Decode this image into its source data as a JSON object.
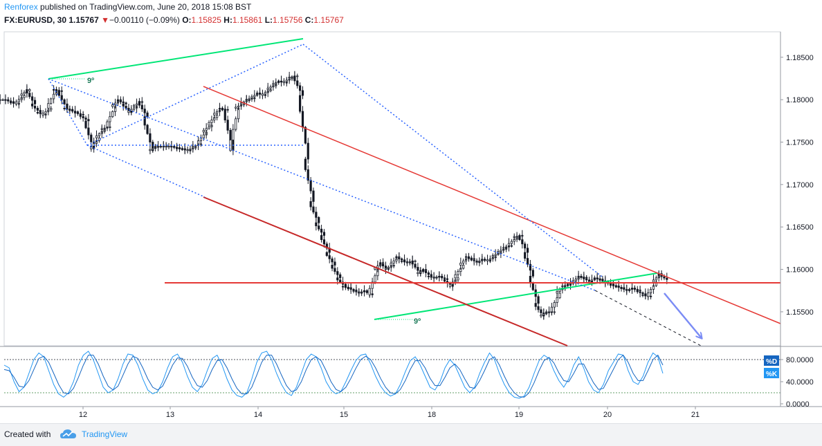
{
  "header": {
    "brand": "Renforex",
    "published": "published on TradingView.com, June 20, 2018 15:08 BST",
    "symbol": "FX:EURUSD, 30",
    "last": "1.15767",
    "change": "−0.00110 (−0.09%)",
    "o_label": "O:",
    "o": "1.15825",
    "h_label": "H:",
    "h": "1.15861",
    "l_label": "L:",
    "l": "1.15756",
    "c_label": "C:",
    "c": "1.15767"
  },
  "footer": {
    "created": "Created with",
    "brand": "TradingView"
  },
  "colors": {
    "up": "#131722",
    "down": "#131722",
    "trend_red": "#e53935",
    "trend_green": "#00e676",
    "dotted_blue": "#2962ff",
    "stoch_k": "#2196f3",
    "stoch_d": "#1565c0",
    "axis_text": "#131722"
  },
  "chart_data": [
    {
      "type": "line",
      "subtype": "candlestick",
      "x_ticks": [
        "12",
        "13",
        "14",
        "15",
        "18",
        "19",
        "20",
        "21"
      ],
      "y_ticks": [
        "1.18500",
        "1.18000",
        "1.17500",
        "1.17000",
        "1.16500",
        "1.16000",
        "1.15500"
      ],
      "ylim": [
        1.151,
        1.188
      ],
      "x_range": [
        0,
        71.1
      ],
      "series": [
        {
          "values": [
            [
              0.0,
              1.18
            ],
            [
              0.5,
              1.1797
            ],
            [
              1.0,
              1.1795
            ],
            [
              1.5,
              1.1805
            ],
            [
              2.0,
              1.1812
            ],
            [
              2.5,
              1.1795
            ],
            [
              3.0,
              1.1785
            ],
            [
              3.5,
              1.1782
            ],
            [
              4.0,
              1.179
            ],
            [
              4.5,
              1.1812
            ],
            [
              5.0,
              1.181
            ],
            [
              5.5,
              1.179
            ],
            [
              6.0,
              1.1788
            ],
            [
              6.5,
              1.1785
            ],
            [
              7.0,
              1.1782
            ],
            [
              7.5,
              1.1775
            ],
            [
              8.0,
              1.1742
            ],
            [
              8.5,
              1.1755
            ],
            [
              9.0,
              1.1765
            ],
            [
              9.5,
              1.1768
            ],
            [
              10.0,
              1.1792
            ],
            [
              10.5,
              1.18
            ],
            [
              11.0,
              1.1795
            ],
            [
              11.5,
              1.1785
            ],
            [
              12.0,
              1.1792
            ],
            [
              12.5,
              1.1798
            ],
            [
              13.0,
              1.178
            ],
            [
              13.5,
              1.174
            ],
            [
              14.0,
              1.1745
            ],
            [
              14.5,
              1.1745
            ],
            [
              15.0,
              1.1745
            ],
            [
              15.5,
              1.1745
            ],
            [
              16.0,
              1.1743
            ],
            [
              16.5,
              1.1742
            ],
            [
              17.0,
              1.174
            ],
            [
              17.5,
              1.1744
            ],
            [
              18.0,
              1.1748
            ],
            [
              18.5,
              1.1762
            ],
            [
              19.0,
              1.177
            ],
            [
              19.5,
              1.1782
            ],
            [
              20.0,
              1.179
            ],
            [
              20.5,
              1.1788
            ],
            [
              21.0,
              1.174
            ],
            [
              21.5,
              1.179
            ],
            [
              22.0,
              1.1795
            ],
            [
              22.5,
              1.18
            ],
            [
              23.0,
              1.1802
            ],
            [
              23.5,
              1.1808
            ],
            [
              24.0,
              1.1805
            ],
            [
              24.5,
              1.1812
            ],
            [
              25.0,
              1.1818
            ],
            [
              25.5,
              1.1822
            ],
            [
              26.0,
              1.182
            ],
            [
              26.5,
              1.1826
            ],
            [
              27.0,
              1.1828
            ],
            [
              27.5,
              1.1805
            ],
            [
              28.0,
              1.173
            ],
            [
              28.5,
              1.168
            ],
            [
              29.0,
              1.1655
            ],
            [
              29.5,
              1.164
            ],
            [
              30.0,
              1.162
            ],
            [
              30.5,
              1.1605
            ],
            [
              31.0,
              1.159
            ],
            [
              31.5,
              1.158
            ],
            [
              32.0,
              1.1578
            ],
            [
              32.5,
              1.1575
            ],
            [
              33.0,
              1.1572
            ],
            [
              33.5,
              1.1575
            ],
            [
              34.0,
              1.157
            ],
            [
              34.5,
              1.16
            ],
            [
              35.0,
              1.1608
            ],
            [
              35.5,
              1.16
            ],
            [
              36.0,
              1.1605
            ],
            [
              36.5,
              1.1615
            ],
            [
              37.0,
              1.161
            ],
            [
              37.5,
              1.1608
            ],
            [
              38.0,
              1.161
            ],
            [
              38.5,
              1.1595
            ],
            [
              39.0,
              1.16
            ],
            [
              39.5,
              1.1592
            ],
            [
              40.0,
              1.159
            ],
            [
              40.5,
              1.1592
            ],
            [
              41.0,
              1.1588
            ],
            [
              41.5,
              1.158
            ],
            [
              42.0,
              1.159
            ],
            [
              42.5,
              1.1605
            ],
            [
              43.0,
              1.1615
            ],
            [
              43.5,
              1.1612
            ],
            [
              44.0,
              1.1608
            ],
            [
              44.5,
              1.1612
            ],
            [
              45.0,
              1.161
            ],
            [
              45.5,
              1.1615
            ],
            [
              46.0,
              1.162
            ],
            [
              46.5,
              1.1625
            ],
            [
              47.0,
              1.1628
            ],
            [
              47.5,
              1.1638
            ],
            [
              48.0,
              1.164
            ],
            [
              48.5,
              1.162
            ],
            [
              49.0,
              1.1592
            ],
            [
              49.5,
              1.156
            ],
            [
              50.0,
              1.1545
            ],
            [
              50.5,
              1.155
            ],
            [
              51.0,
              1.155
            ],
            [
              51.5,
              1.1572
            ],
            [
              52.0,
              1.158
            ],
            [
              52.5,
              1.1582
            ],
            [
              53.0,
              1.1585
            ],
            [
              53.5,
              1.1592
            ],
            [
              54.0,
              1.159
            ],
            [
              54.5,
              1.1585
            ],
            [
              55.0,
              1.159
            ],
            [
              55.5,
              1.1588
            ],
            [
              56.0,
              1.1585
            ],
            [
              56.5,
              1.1582
            ],
            [
              57.0,
              1.158
            ],
            [
              57.5,
              1.1578
            ],
            [
              58.0,
              1.1575
            ],
            [
              58.5,
              1.1578
            ],
            [
              59.0,
              1.1575
            ],
            [
              59.5,
              1.157
            ],
            [
              60.0,
              1.1568
            ],
            [
              60.5,
              1.1585
            ],
            [
              61.0,
              1.1595
            ],
            [
              61.5,
              1.1588
            ]
          ]
        }
      ],
      "annotations": [
        "9º",
        "9º"
      ]
    },
    {
      "type": "line",
      "title": "",
      "legend": [
        "%D",
        "%K"
      ],
      "y_ticks": [
        "80.0000",
        "40.0000",
        "0.0000"
      ],
      "ylim": [
        -5,
        100
      ],
      "levels": [
        80,
        20
      ],
      "series": [
        {
          "name": "%K",
          "values": [
            70,
            65,
            40,
            22,
            30,
            55,
            80,
            92,
            85,
            60,
            35,
            18,
            12,
            20,
            40,
            70,
            88,
            95,
            80,
            55,
            30,
            20,
            25,
            45,
            72,
            90,
            88,
            70,
            45,
            25,
            18,
            22,
            40,
            65,
            85,
            90,
            75,
            50,
            30,
            22,
            35,
            60,
            82,
            88,
            70,
            45,
            25,
            15,
            12,
            20,
            45,
            75,
            92,
            95,
            80,
            55,
            35,
            20,
            15,
            30,
            55,
            80,
            90,
            85,
            65,
            40,
            25,
            18,
            22,
            40,
            60,
            78,
            88,
            90,
            72,
            50,
            32,
            20,
            14,
            18,
            35,
            58,
            78,
            85,
            70,
            50,
            30,
            25,
            40,
            65,
            80,
            70,
            50,
            30,
            20,
            30,
            55,
            75,
            92,
            80,
            55,
            35,
            20,
            12,
            10,
            14,
            30,
            55,
            78,
            88,
            82,
            60,
            42,
            30,
            45,
            70,
            85,
            65,
            40,
            25,
            20,
            35,
            60,
            75,
            90,
            88,
            60,
            40,
            35,
            50,
            75,
            92,
            85,
            55
          ]
        },
        {
          "name": "%D",
          "values": [
            62,
            60,
            48,
            32,
            30,
            42,
            62,
            82,
            86,
            75,
            55,
            35,
            20,
            18,
            28,
            48,
            70,
            88,
            88,
            72,
            50,
            32,
            25,
            32,
            52,
            72,
            86,
            82,
            65,
            45,
            30,
            25,
            32,
            50,
            70,
            83,
            82,
            68,
            48,
            33,
            30,
            42,
            62,
            78,
            80,
            65,
            45,
            28,
            18,
            18,
            30,
            52,
            75,
            88,
            88,
            72,
            52,
            33,
            22,
            25,
            40,
            62,
            80,
            85,
            78,
            60,
            40,
            26,
            22,
            30,
            46,
            64,
            80,
            86,
            80,
            65,
            46,
            30,
            20,
            18,
            26,
            42,
            62,
            78,
            78,
            65,
            46,
            33,
            33,
            48,
            65,
            72,
            62,
            45,
            30,
            28,
            42,
            60,
            80,
            85,
            70,
            50,
            32,
            20,
            13,
            12,
            20,
            38,
            60,
            78,
            84,
            74,
            56,
            42,
            40,
            55,
            72,
            72,
            55,
            38,
            26,
            28,
            45,
            62,
            80,
            88,
            75,
            55,
            42,
            42,
            60,
            80,
            88,
            70
          ]
        }
      ]
    }
  ]
}
